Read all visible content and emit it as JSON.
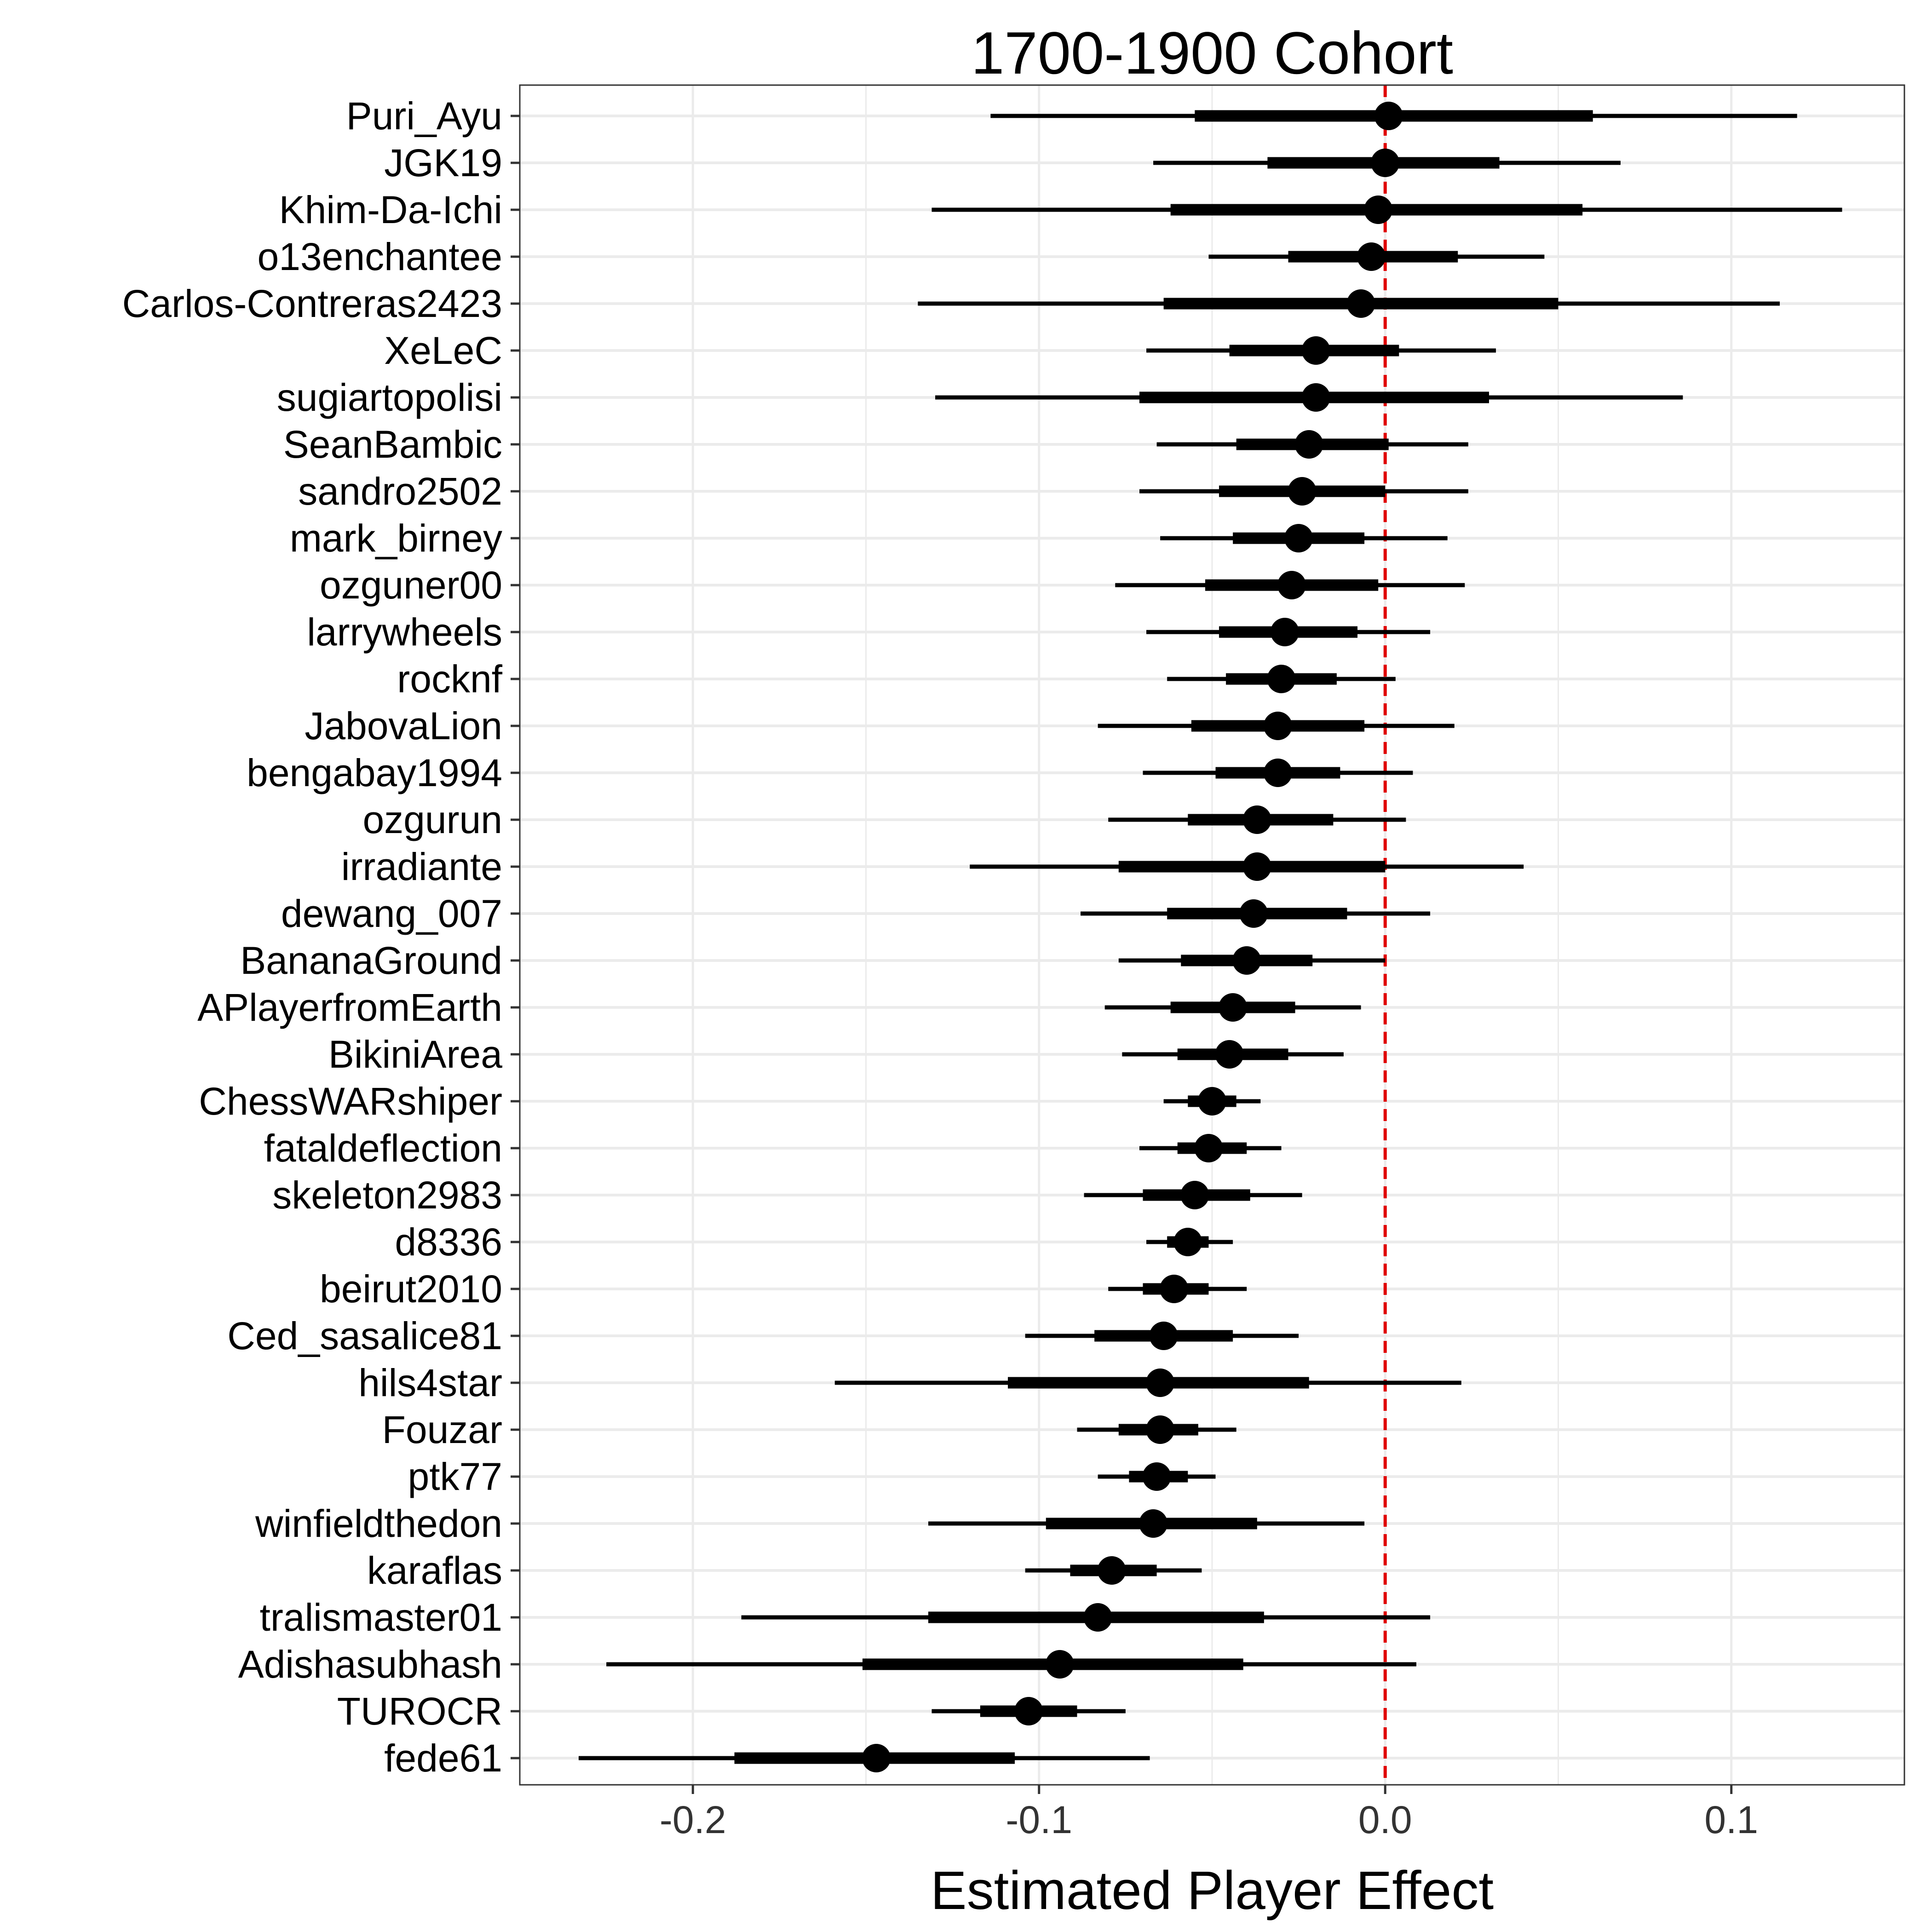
{
  "chart_data": {
    "type": "forest",
    "title": "1700-1900 Cohort",
    "xlabel": "Estimated Player Effect",
    "ylabel": "",
    "xlim": [
      -0.25,
      0.15
    ],
    "xticks": [
      -0.2,
      -0.1,
      0.0,
      0.1
    ],
    "xtick_labels": [
      "-0.2",
      "-0.1",
      "0.0",
      "0.1"
    ],
    "reference_line": {
      "x": 0.0,
      "color": "#e00000",
      "style": "dashed"
    },
    "grid": true,
    "colors": {
      "points": "#000000",
      "reference": "#e00000",
      "grid": "#ebebeb",
      "panel_border": "#333333"
    },
    "series": [
      {
        "label": "Puri_Ayu",
        "estimate": 0.001,
        "inner": [
          -0.055,
          0.06
        ],
        "outer": [
          -0.114,
          0.119
        ]
      },
      {
        "label": "JGK19",
        "estimate": 0.0,
        "inner": [
          -0.034,
          0.033
        ],
        "outer": [
          -0.067,
          0.068
        ]
      },
      {
        "label": "Khim-Da-Ichi",
        "estimate": -0.002,
        "inner": [
          -0.062,
          0.057
        ],
        "outer": [
          -0.131,
          0.132
        ]
      },
      {
        "label": "o13enchantee",
        "estimate": -0.004,
        "inner": [
          -0.028,
          0.021
        ],
        "outer": [
          -0.051,
          0.046
        ]
      },
      {
        "label": "Carlos-Contreras2423",
        "estimate": -0.007,
        "inner": [
          -0.064,
          0.05
        ],
        "outer": [
          -0.135,
          0.114
        ]
      },
      {
        "label": "XeLeC",
        "estimate": -0.02,
        "inner": [
          -0.045,
          0.004
        ],
        "outer": [
          -0.069,
          0.032
        ]
      },
      {
        "label": "sugiartopolisi",
        "estimate": -0.02,
        "inner": [
          -0.071,
          0.03
        ],
        "outer": [
          -0.13,
          0.086
        ]
      },
      {
        "label": "SeanBambic",
        "estimate": -0.022,
        "inner": [
          -0.043,
          0.001
        ],
        "outer": [
          -0.066,
          0.024
        ]
      },
      {
        "label": "sandro2502",
        "estimate": -0.024,
        "inner": [
          -0.048,
          0.0
        ],
        "outer": [
          -0.071,
          0.024
        ]
      },
      {
        "label": "mark_birney",
        "estimate": -0.025,
        "inner": [
          -0.044,
          -0.006
        ],
        "outer": [
          -0.065,
          0.018
        ]
      },
      {
        "label": "ozguner00",
        "estimate": -0.027,
        "inner": [
          -0.052,
          -0.002
        ],
        "outer": [
          -0.078,
          0.023
        ]
      },
      {
        "label": "larrywheels",
        "estimate": -0.029,
        "inner": [
          -0.048,
          -0.008
        ],
        "outer": [
          -0.069,
          0.013
        ]
      },
      {
        "label": "rocknf",
        "estimate": -0.03,
        "inner": [
          -0.046,
          -0.014
        ],
        "outer": [
          -0.063,
          0.003
        ]
      },
      {
        "label": "JabovaLion",
        "estimate": -0.031,
        "inner": [
          -0.056,
          -0.006
        ],
        "outer": [
          -0.083,
          0.02
        ]
      },
      {
        "label": "bengabay1994",
        "estimate": -0.031,
        "inner": [
          -0.049,
          -0.013
        ],
        "outer": [
          -0.07,
          0.008
        ]
      },
      {
        "label": "ozgurun",
        "estimate": -0.037,
        "inner": [
          -0.057,
          -0.015
        ],
        "outer": [
          -0.08,
          0.006
        ]
      },
      {
        "label": "irradiante",
        "estimate": -0.037,
        "inner": [
          -0.077,
          0.0
        ],
        "outer": [
          -0.12,
          0.04
        ]
      },
      {
        "label": "dewang_007",
        "estimate": -0.038,
        "inner": [
          -0.063,
          -0.011
        ],
        "outer": [
          -0.088,
          0.013
        ]
      },
      {
        "label": "BananaGround",
        "estimate": -0.04,
        "inner": [
          -0.059,
          -0.021
        ],
        "outer": [
          -0.077,
          0.0
        ]
      },
      {
        "label": "APlayerfromEarth",
        "estimate": -0.044,
        "inner": [
          -0.062,
          -0.026
        ],
        "outer": [
          -0.081,
          -0.007
        ]
      },
      {
        "label": "BikiniArea",
        "estimate": -0.045,
        "inner": [
          -0.06,
          -0.028
        ],
        "outer": [
          -0.076,
          -0.012
        ]
      },
      {
        "label": "ChessWARshiper",
        "estimate": -0.05,
        "inner": [
          -0.057,
          -0.043
        ],
        "outer": [
          -0.064,
          -0.036
        ]
      },
      {
        "label": "fataldeflection",
        "estimate": -0.051,
        "inner": [
          -0.06,
          -0.04
        ],
        "outer": [
          -0.071,
          -0.03
        ]
      },
      {
        "label": "skeleton2983",
        "estimate": -0.055,
        "inner": [
          -0.07,
          -0.039
        ],
        "outer": [
          -0.087,
          -0.024
        ]
      },
      {
        "label": "d8336",
        "estimate": -0.057,
        "inner": [
          -0.063,
          -0.051
        ],
        "outer": [
          -0.069,
          -0.044
        ]
      },
      {
        "label": "beirut2010",
        "estimate": -0.061,
        "inner": [
          -0.07,
          -0.051
        ],
        "outer": [
          -0.08,
          -0.04
        ]
      },
      {
        "label": "Ced_sasalice81",
        "estimate": -0.064,
        "inner": [
          -0.084,
          -0.044
        ],
        "outer": [
          -0.104,
          -0.025
        ]
      },
      {
        "label": "hils4star",
        "estimate": -0.065,
        "inner": [
          -0.109,
          -0.022
        ],
        "outer": [
          -0.159,
          0.022
        ]
      },
      {
        "label": "Fouzar",
        "estimate": -0.065,
        "inner": [
          -0.077,
          -0.054
        ],
        "outer": [
          -0.089,
          -0.043
        ]
      },
      {
        "label": "ptk77",
        "estimate": -0.066,
        "inner": [
          -0.074,
          -0.057
        ],
        "outer": [
          -0.083,
          -0.049
        ]
      },
      {
        "label": "winfieldthedon",
        "estimate": -0.067,
        "inner": [
          -0.098,
          -0.037
        ],
        "outer": [
          -0.132,
          -0.006
        ]
      },
      {
        "label": "karaflas",
        "estimate": -0.079,
        "inner": [
          -0.091,
          -0.066
        ],
        "outer": [
          -0.104,
          -0.053
        ]
      },
      {
        "label": "tralismaster01",
        "estimate": -0.083,
        "inner": [
          -0.132,
          -0.035
        ],
        "outer": [
          -0.186,
          0.013
        ]
      },
      {
        "label": "Adishasubhash",
        "estimate": -0.094,
        "inner": [
          -0.151,
          -0.041
        ],
        "outer": [
          -0.225,
          0.009
        ]
      },
      {
        "label": "TUROCR",
        "estimate": -0.103,
        "inner": [
          -0.117,
          -0.089
        ],
        "outer": [
          -0.131,
          -0.075
        ]
      },
      {
        "label": "fede61",
        "estimate": -0.147,
        "inner": [
          -0.188,
          -0.107
        ],
        "outer": [
          -0.233,
          -0.068
        ]
      }
    ]
  }
}
